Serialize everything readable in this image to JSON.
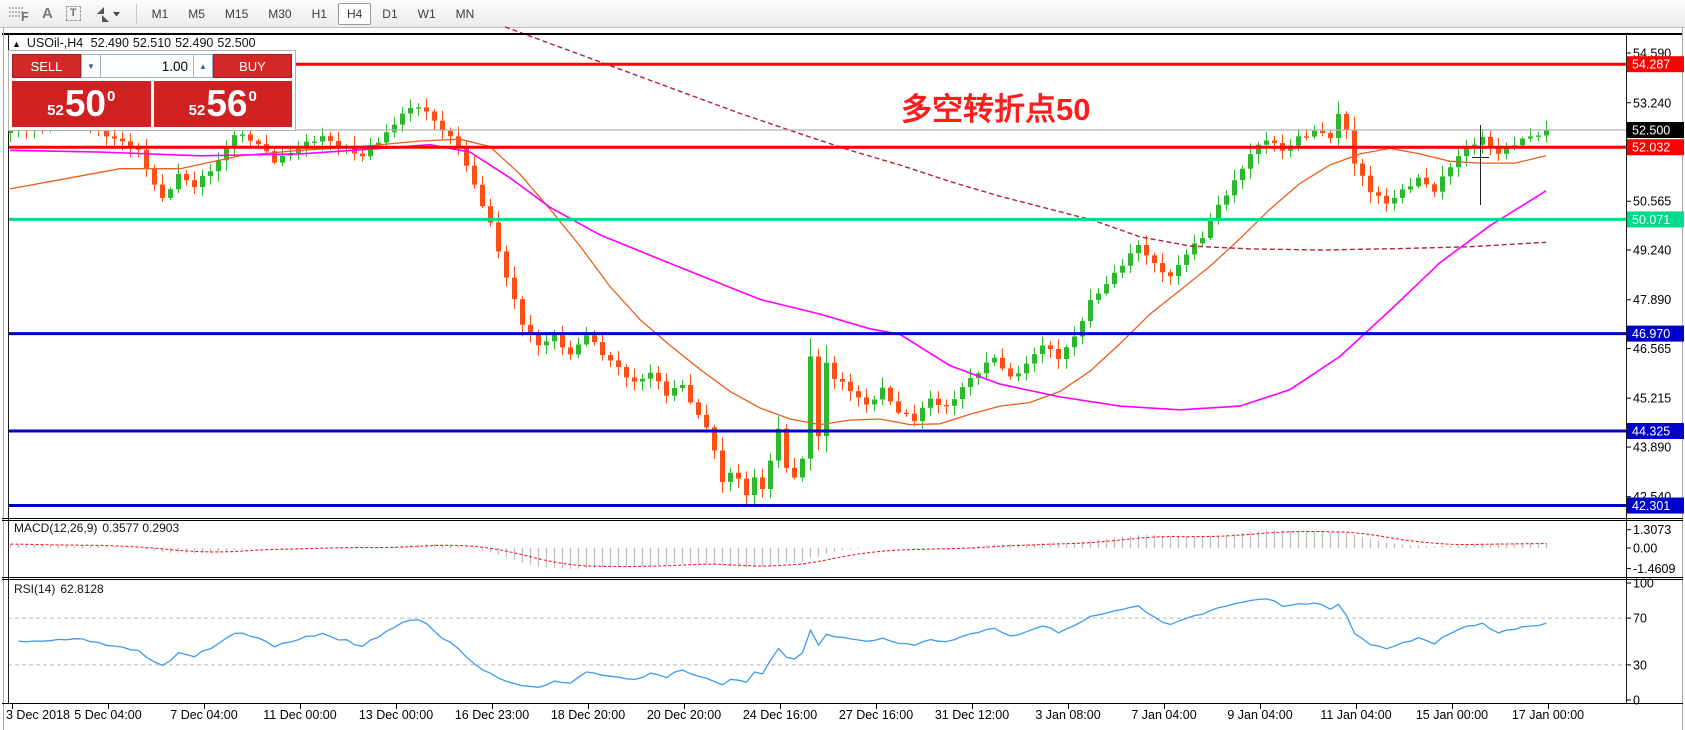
{
  "toolbar": {
    "icons": [
      {
        "name": "chart-objects-f-icon",
        "glyph": "F"
      },
      {
        "name": "text-label-icon",
        "glyph": "A"
      },
      {
        "name": "text-box-icon",
        "glyph": "T"
      },
      {
        "name": "arrow-style-icon",
        "glyph": "arrows-with-dropdown"
      }
    ],
    "timeframes": [
      "M1",
      "M5",
      "M15",
      "M30",
      "H1",
      "H4",
      "D1",
      "W1",
      "MN"
    ],
    "active_timeframe": "H4"
  },
  "chart_header": {
    "symbol": "USOil-,H4",
    "open": "52.490",
    "high": "52.510",
    "low": "52.490",
    "close": "52.500"
  },
  "trade_panel": {
    "sell_label": "SELL",
    "buy_label": "BUY",
    "volume": "1.00",
    "sell_small": "52",
    "sell_big": "50",
    "sell_sup": "0",
    "buy_small": "52",
    "buy_big": "56",
    "buy_sup": "0"
  },
  "annotation": {
    "text": "多空转折点50",
    "color": "#ff1c1c"
  },
  "chart_data": {
    "type": "candlestick",
    "symbol": "USOil-",
    "timeframe": "H4",
    "candles": {
      "count": 193,
      "up_color": "#2db92d",
      "down_color": "#ff4f14",
      "close_path": [
        [
          0,
          52.5
        ],
        [
          5,
          52.65
        ],
        [
          9,
          52.8
        ],
        [
          13,
          52.25
        ],
        [
          16,
          51.9
        ],
        [
          19,
          50.65
        ],
        [
          21,
          51.25
        ],
        [
          23,
          50.95
        ],
        [
          26,
          51.7
        ],
        [
          28,
          52.4
        ],
        [
          31,
          52.1
        ],
        [
          33,
          51.7
        ],
        [
          36,
          52.0
        ],
        [
          39,
          52.3
        ],
        [
          42,
          52.05
        ],
        [
          44,
          51.75
        ],
        [
          47,
          52.4
        ],
        [
          49,
          53.0
        ],
        [
          51,
          53.15
        ],
        [
          54,
          52.5
        ],
        [
          56,
          52.1
        ],
        [
          58,
          51.0
        ],
        [
          60,
          49.9
        ],
        [
          62,
          48.5
        ],
        [
          64,
          47.3
        ],
        [
          66,
          46.65
        ],
        [
          68,
          46.85
        ],
        [
          70,
          46.4
        ],
        [
          72,
          47.0
        ],
        [
          74,
          46.4
        ],
        [
          76,
          46.0
        ],
        [
          78,
          45.65
        ],
        [
          80,
          45.95
        ],
        [
          82,
          45.3
        ],
        [
          84,
          45.55
        ],
        [
          86,
          44.75
        ],
        [
          87,
          44.5
        ],
        [
          88,
          43.8
        ],
        [
          89,
          42.9
        ],
        [
          90,
          43.2
        ],
        [
          91,
          42.95
        ],
        [
          92,
          42.6
        ],
        [
          93,
          43.1
        ],
        [
          94,
          42.75
        ],
        [
          95,
          43.6
        ],
        [
          96,
          44.35
        ],
        [
          97,
          43.3
        ],
        [
          98,
          43.05
        ],
        [
          99,
          43.5
        ],
        [
          100,
          46.4
        ],
        [
          101,
          44.2
        ],
        [
          102,
          46.2
        ],
        [
          103,
          45.8
        ],
        [
          105,
          45.4
        ],
        [
          107,
          45.0
        ],
        [
          109,
          45.5
        ],
        [
          111,
          44.85
        ],
        [
          113,
          44.6
        ],
        [
          115,
          45.2
        ],
        [
          117,
          45.0
        ],
        [
          119,
          45.5
        ],
        [
          121,
          45.9
        ],
        [
          123,
          46.35
        ],
        [
          125,
          45.8
        ],
        [
          127,
          46.1
        ],
        [
          129,
          46.65
        ],
        [
          131,
          46.35
        ],
        [
          133,
          46.9
        ],
        [
          135,
          47.8
        ],
        [
          137,
          48.3
        ],
        [
          139,
          48.9
        ],
        [
          141,
          49.4
        ],
        [
          143,
          48.8
        ],
        [
          145,
          48.5
        ],
        [
          147,
          49.2
        ],
        [
          149,
          49.6
        ],
        [
          151,
          50.4
        ],
        [
          153,
          51.1
        ],
        [
          155,
          51.9
        ],
        [
          157,
          52.25
        ],
        [
          159,
          51.9
        ],
        [
          161,
          52.3
        ],
        [
          163,
          52.5
        ],
        [
          165,
          52.3
        ],
        [
          166,
          52.85
        ],
        [
          167,
          52.5
        ],
        [
          168,
          51.6
        ],
        [
          170,
          50.9
        ],
        [
          172,
          50.5
        ],
        [
          174,
          50.8
        ],
        [
          176,
          51.2
        ],
        [
          178,
          50.9
        ],
        [
          180,
          51.5
        ],
        [
          182,
          52.0
        ],
        [
          184,
          52.3
        ],
        [
          186,
          51.9
        ],
        [
          188,
          52.1
        ],
        [
          190,
          52.3
        ],
        [
          192,
          52.5
        ]
      ]
    },
    "hlines": [
      {
        "label": "54.287",
        "price": 54.287,
        "color": "#ff0000",
        "width": 3,
        "badge_bg": "#ff0000"
      },
      {
        "label": "52.500",
        "price": 52.5,
        "color": "#b2b2b2",
        "width": 1.2,
        "badge_bg": "#000000"
      },
      {
        "label": "52.032",
        "price": 52.032,
        "color": "#ff0000",
        "width": 3,
        "badge_bg": "#ff0000"
      },
      {
        "label": "50.071",
        "price": 50.071,
        "color": "#00db8b",
        "width": 3,
        "badge_bg": "#00db8b"
      },
      {
        "label": "46.970",
        "price": 46.97,
        "color": "#0000cd",
        "width": 3,
        "badge_bg": "#0000cd"
      },
      {
        "label": "44.325",
        "price": 44.325,
        "color": "#0000cd",
        "width": 3,
        "badge_bg": "#0000cd"
      },
      {
        "label": "42.301",
        "price": 42.301,
        "color": "#0000cd",
        "width": 3,
        "badge_bg": "#0000cd"
      }
    ],
    "price_axis_ticks": [
      {
        "label": "54.590",
        "p": 54.59
      },
      {
        "label": "53.240",
        "p": 53.24
      },
      {
        "label": "50.565",
        "p": 50.565
      },
      {
        "label": "49.240",
        "p": 49.24
      },
      {
        "label": "47.890",
        "p": 47.89
      },
      {
        "label": "46.565",
        "p": 46.565
      },
      {
        "label": "45.215",
        "p": 45.215
      },
      {
        "label": "43.890",
        "p": 43.89
      },
      {
        "label": "42.540",
        "p": 42.54
      }
    ],
    "time_ticks": [
      "3 Dec 2018",
      "5 Dec 04:00",
      "7 Dec 04:00",
      "11 Dec 00:00",
      "13 Dec 00:00",
      "16 Dec 23:00",
      "18 Dec 20:00",
      "20 Dec 20:00",
      "24 Dec 16:00",
      "27 Dec 16:00",
      "31 Dec 12:00",
      "3 Jan 08:00",
      "7 Jan 04:00",
      "9 Jan 04:00",
      "11 Jan 04:00",
      "15 Jan 00:00",
      "17 Jan 00:00"
    ],
    "moving_averages": [
      {
        "name": "ma-fast",
        "color": "#e8601c",
        "width": 1.3,
        "dashed": false,
        "points": [
          [
            10,
            50.9
          ],
          [
            60,
            51.15
          ],
          [
            120,
            51.45
          ],
          [
            180,
            51.45
          ],
          [
            240,
            51.8
          ],
          [
            300,
            51.95
          ],
          [
            360,
            52.05
          ],
          [
            420,
            52.2
          ],
          [
            460,
            52.25
          ],
          [
            490,
            52.05
          ],
          [
            520,
            51.3
          ],
          [
            550,
            50.35
          ],
          [
            580,
            49.35
          ],
          [
            610,
            48.25
          ],
          [
            640,
            47.35
          ],
          [
            670,
            46.65
          ],
          [
            700,
            46.0
          ],
          [
            730,
            45.4
          ],
          [
            760,
            44.95
          ],
          [
            790,
            44.65
          ],
          [
            820,
            44.5
          ],
          [
            850,
            44.62
          ],
          [
            880,
            44.65
          ],
          [
            910,
            44.5
          ],
          [
            940,
            44.52
          ],
          [
            970,
            44.78
          ],
          [
            1000,
            45.0
          ],
          [
            1030,
            45.1
          ],
          [
            1060,
            45.4
          ],
          [
            1090,
            45.95
          ],
          [
            1120,
            46.7
          ],
          [
            1150,
            47.5
          ],
          [
            1180,
            48.15
          ],
          [
            1210,
            48.8
          ],
          [
            1240,
            49.55
          ],
          [
            1270,
            50.35
          ],
          [
            1300,
            51.05
          ],
          [
            1330,
            51.55
          ],
          [
            1360,
            51.85
          ],
          [
            1390,
            52.0
          ],
          [
            1420,
            51.85
          ],
          [
            1450,
            51.65
          ],
          [
            1480,
            51.6
          ],
          [
            1515,
            51.6
          ],
          [
            1546,
            51.8
          ]
        ]
      },
      {
        "name": "ma-mid",
        "color": "#ff00ff",
        "width": 1.6,
        "dashed": false,
        "points": [
          [
            10,
            51.95
          ],
          [
            100,
            51.9
          ],
          [
            200,
            51.8
          ],
          [
            300,
            51.85
          ],
          [
            380,
            52.0
          ],
          [
            430,
            52.1
          ],
          [
            470,
            51.9
          ],
          [
            510,
            51.2
          ],
          [
            550,
            50.4
          ],
          [
            600,
            49.65
          ],
          [
            650,
            49.1
          ],
          [
            700,
            48.55
          ],
          [
            760,
            47.9
          ],
          [
            820,
            47.5
          ],
          [
            870,
            47.1
          ],
          [
            900,
            46.95
          ],
          [
            950,
            46.1
          ],
          [
            1000,
            45.6
          ],
          [
            1060,
            45.25
          ],
          [
            1120,
            45.0
          ],
          [
            1180,
            44.9
          ],
          [
            1240,
            45.0
          ],
          [
            1290,
            45.45
          ],
          [
            1340,
            46.35
          ],
          [
            1390,
            47.6
          ],
          [
            1440,
            48.9
          ],
          [
            1490,
            49.9
          ],
          [
            1546,
            50.85
          ]
        ]
      },
      {
        "name": "ma-slow",
        "color": "#b22238",
        "width": 1.4,
        "dashed": true,
        "points": [
          [
            505,
            55.3
          ],
          [
            560,
            54.75
          ],
          [
            620,
            54.15
          ],
          [
            680,
            53.55
          ],
          [
            740,
            52.95
          ],
          [
            800,
            52.4
          ],
          [
            850,
            51.95
          ],
          [
            900,
            51.55
          ],
          [
            950,
            51.1
          ],
          [
            1000,
            50.7
          ],
          [
            1050,
            50.35
          ],
          [
            1093,
            50.05
          ],
          [
            1140,
            49.6
          ],
          [
            1190,
            49.35
          ],
          [
            1250,
            49.27
          ],
          [
            1320,
            49.24
          ],
          [
            1400,
            49.28
          ],
          [
            1470,
            49.33
          ],
          [
            1546,
            49.45
          ]
        ]
      }
    ],
    "macd": {
      "label": "MACD(12,26,9)",
      "values": "0.3577 0.2903",
      "axis_labels": [
        "1.3073",
        "0.00",
        "-1.4609"
      ],
      "histogram_color": "#c0c0c0",
      "signal_color": "#ff1a1a"
    },
    "rsi": {
      "label": "RSI(14)",
      "value": "62.8128",
      "axis_labels": [
        "100",
        "70",
        "30",
        "0"
      ],
      "levels": [
        70,
        30
      ],
      "level_color": "#bcbcbc",
      "color": "#3e9bef"
    }
  }
}
